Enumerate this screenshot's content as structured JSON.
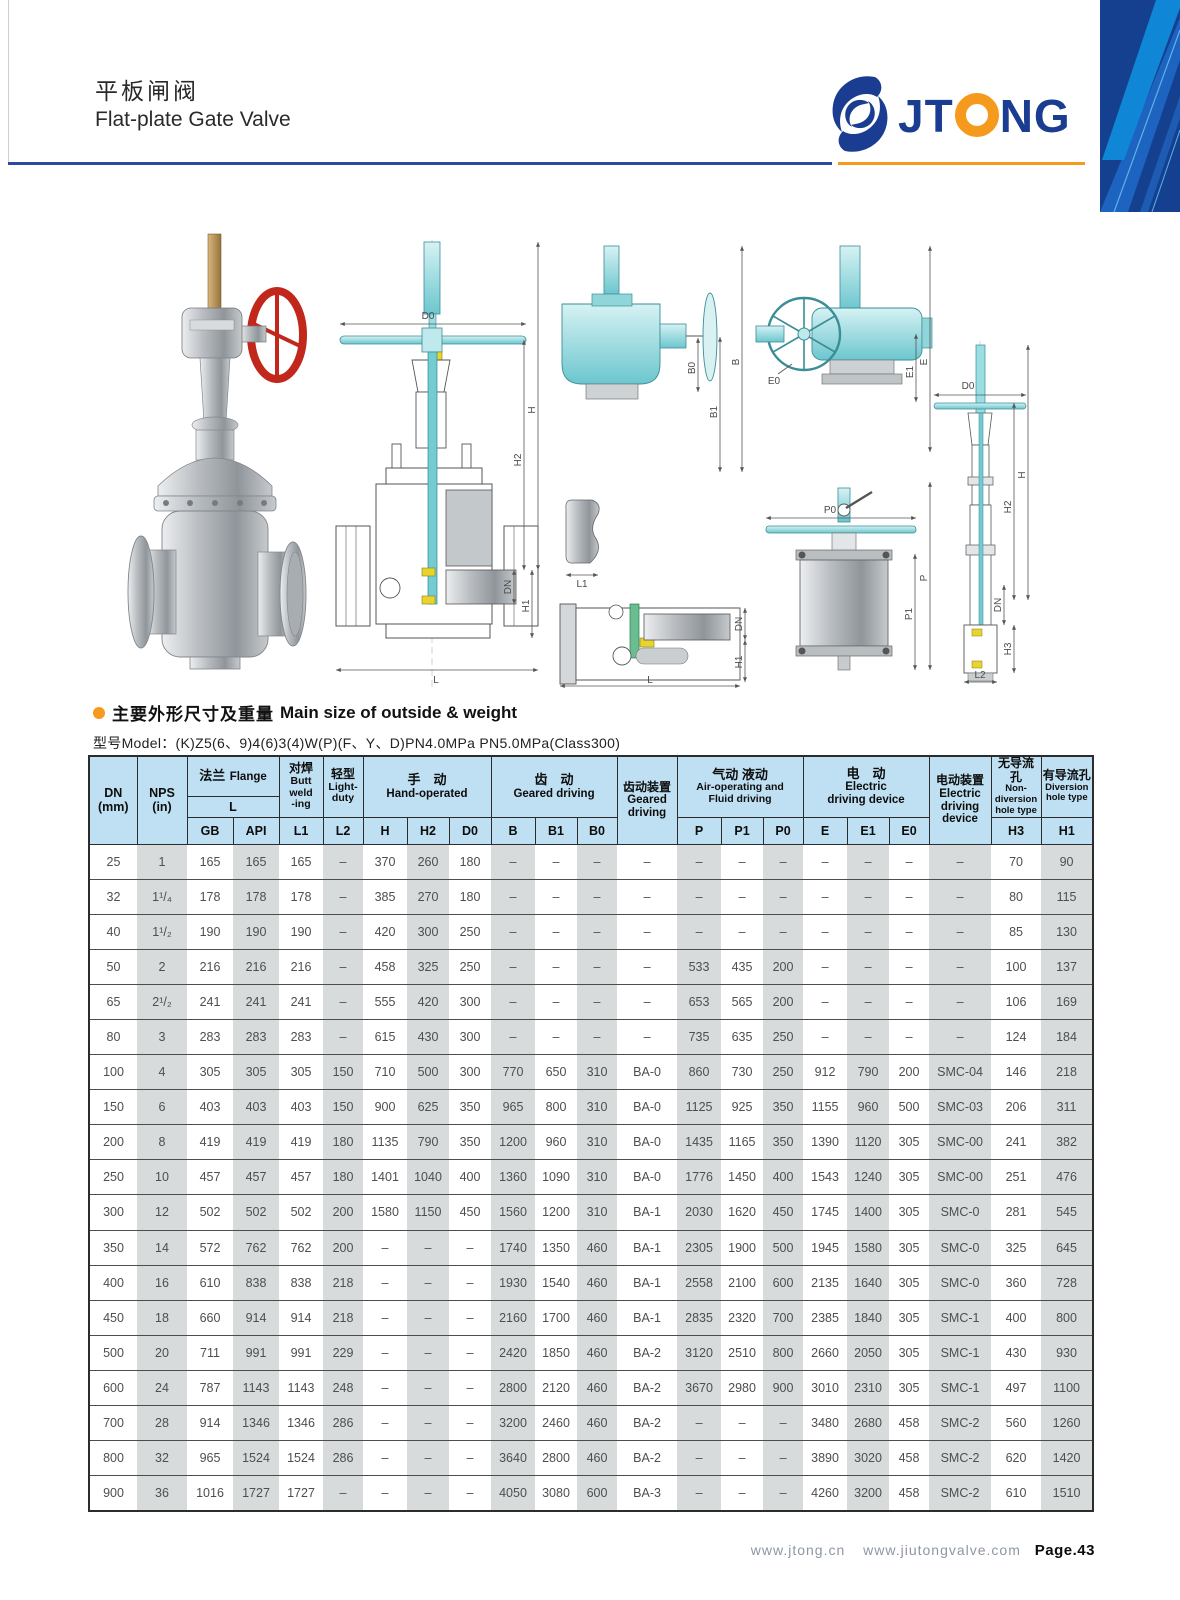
{
  "header": {
    "title_zh": "平板闸阀",
    "title_en": "Flat-plate Gate Valve",
    "logo": {
      "part1": "JT",
      "part2": "NG",
      "brand": "JTONG"
    }
  },
  "colors": {
    "accent_orange": "#F59A1D",
    "brand_navy": "#1B3D91",
    "rule_blue": "#2B4A9E",
    "table_header_bg": "#BFE0F2",
    "stripe_gray": "#D7DBDC",
    "drawing_teal": "#5FC4CC",
    "handwheel_red": "#C1271B"
  },
  "section": {
    "title_zh": "主要外形尺寸及重量",
    "title_en": "Main size of outside & weight",
    "model_label": "型号Model：",
    "model_value": "(K)Z5(6、9)4(6)3(4)W(P)(F、Y、D)PN4.0MPa PN5.0MPa(Class300)"
  },
  "drawings": {
    "fig2": {
      "dims": [
        "D0",
        "H",
        "H2",
        "DN",
        "H1",
        "L"
      ]
    },
    "fig3": {
      "dims": [
        "B0",
        "B1",
        "B",
        "L1",
        "DN",
        "H1",
        "L"
      ]
    },
    "fig4": {
      "dims": [
        "E0",
        "E",
        "E1",
        "P0",
        "P",
        "P1"
      ]
    },
    "fig5": {
      "dims": [
        "D0",
        "H",
        "H2",
        "DN",
        "H3",
        "L2"
      ]
    }
  },
  "table": {
    "header": {
      "dn": "DN\n(mm)",
      "nps": "NPS\n(in)",
      "flange": {
        "zh": "法兰",
        "en": "Flange",
        "sub": "L",
        "cols": [
          "GB",
          "API"
        ]
      },
      "butt": {
        "zh": "对焊",
        "en": "Butt\nweld\n-ing",
        "col": "L1"
      },
      "light": {
        "zh": "轻型",
        "en": "Light-\nduty",
        "col": "L2"
      },
      "hand": {
        "zh": "手　动",
        "en": "Hand-operated",
        "cols": [
          "H",
          "H2",
          "D0"
        ]
      },
      "geared": {
        "zh": "齿　动",
        "en": "Geared driving",
        "cols": [
          "B",
          "B1",
          "B0"
        ]
      },
      "geared_device": {
        "zh": "齿动装置",
        "en": "Geared\ndriving"
      },
      "air": {
        "zh": "气动 液动",
        "en": "Air-operating and\nFluid driving",
        "cols": [
          "P",
          "P1",
          "P0"
        ]
      },
      "electric": {
        "zh": "电　动",
        "en": "Electric\ndriving device",
        "cols": [
          "E",
          "E1",
          "E0"
        ]
      },
      "electric_device": {
        "zh": "电动装置",
        "en": "Electric\ndriving\ndevice"
      },
      "nondiversion": {
        "zh": "无导流孔",
        "en": "Non-diversion\nhole type",
        "col": "H3"
      },
      "diversion": {
        "zh": "有导流孔",
        "en": "Diversion\nhole type",
        "col": "H1"
      }
    },
    "rows": [
      [
        "25",
        "1",
        "165",
        "165",
        "165",
        "–",
        "370",
        "260",
        "180",
        "–",
        "–",
        "–",
        "–",
        "–",
        "–",
        "–",
        "–",
        "–",
        "–",
        "–",
        "70",
        "90"
      ],
      [
        "32",
        "1¹/₄",
        "178",
        "178",
        "178",
        "–",
        "385",
        "270",
        "180",
        "–",
        "–",
        "–",
        "–",
        "–",
        "–",
        "–",
        "–",
        "–",
        "–",
        "–",
        "80",
        "115"
      ],
      [
        "40",
        "1¹/₂",
        "190",
        "190",
        "190",
        "–",
        "420",
        "300",
        "250",
        "–",
        "–",
        "–",
        "–",
        "–",
        "–",
        "–",
        "–",
        "–",
        "–",
        "–",
        "85",
        "130"
      ],
      [
        "50",
        "2",
        "216",
        "216",
        "216",
        "–",
        "458",
        "325",
        "250",
        "–",
        "–",
        "–",
        "–",
        "533",
        "435",
        "200",
        "–",
        "–",
        "–",
        "–",
        "100",
        "137"
      ],
      [
        "65",
        "2¹/₂",
        "241",
        "241",
        "241",
        "–",
        "555",
        "420",
        "300",
        "–",
        "–",
        "–",
        "–",
        "653",
        "565",
        "200",
        "–",
        "–",
        "–",
        "–",
        "106",
        "169"
      ],
      [
        "80",
        "3",
        "283",
        "283",
        "283",
        "–",
        "615",
        "430",
        "300",
        "–",
        "–",
        "–",
        "–",
        "735",
        "635",
        "250",
        "–",
        "–",
        "–",
        "–",
        "124",
        "184"
      ],
      [
        "100",
        "4",
        "305",
        "305",
        "305",
        "150",
        "710",
        "500",
        "300",
        "770",
        "650",
        "310",
        "BA-0",
        "860",
        "730",
        "250",
        "912",
        "790",
        "200",
        "SMC-04",
        "146",
        "218"
      ],
      [
        "150",
        "6",
        "403",
        "403",
        "403",
        "150",
        "900",
        "625",
        "350",
        "965",
        "800",
        "310",
        "BA-0",
        "1125",
        "925",
        "350",
        "1155",
        "960",
        "500",
        "SMC-03",
        "206",
        "311"
      ],
      [
        "200",
        "8",
        "419",
        "419",
        "419",
        "180",
        "1135",
        "790",
        "350",
        "1200",
        "960",
        "310",
        "BA-0",
        "1435",
        "1165",
        "350",
        "1390",
        "1120",
        "305",
        "SMC-00",
        "241",
        "382"
      ],
      [
        "250",
        "10",
        "457",
        "457",
        "457",
        "180",
        "1401",
        "1040",
        "400",
        "1360",
        "1090",
        "310",
        "BA-0",
        "1776",
        "1450",
        "400",
        "1543",
        "1240",
        "305",
        "SMC-00",
        "251",
        "476"
      ],
      [
        "300",
        "12",
        "502",
        "502",
        "502",
        "200",
        "1580",
        "1150",
        "450",
        "1560",
        "1200",
        "310",
        "BA-1",
        "2030",
        "1620",
        "450",
        "1745",
        "1400",
        "305",
        "SMC-0",
        "281",
        "545"
      ],
      [
        "350",
        "14",
        "572",
        "762",
        "762",
        "200",
        "–",
        "–",
        "–",
        "1740",
        "1350",
        "460",
        "BA-1",
        "2305",
        "1900",
        "500",
        "1945",
        "1580",
        "305",
        "SMC-0",
        "325",
        "645"
      ],
      [
        "400",
        "16",
        "610",
        "838",
        "838",
        "218",
        "–",
        "–",
        "–",
        "1930",
        "1540",
        "460",
        "BA-1",
        "2558",
        "2100",
        "600",
        "2135",
        "1640",
        "305",
        "SMC-0",
        "360",
        "728"
      ],
      [
        "450",
        "18",
        "660",
        "914",
        "914",
        "218",
        "–",
        "–",
        "–",
        "2160",
        "1700",
        "460",
        "BA-1",
        "2835",
        "2320",
        "700",
        "2385",
        "1840",
        "305",
        "SMC-1",
        "400",
        "800"
      ],
      [
        "500",
        "20",
        "711",
        "991",
        "991",
        "229",
        "–",
        "–",
        "–",
        "2420",
        "1850",
        "460",
        "BA-2",
        "3120",
        "2510",
        "800",
        "2660",
        "2050",
        "305",
        "SMC-1",
        "430",
        "930"
      ],
      [
        "600",
        "24",
        "787",
        "1143",
        "1143",
        "248",
        "–",
        "–",
        "–",
        "2800",
        "2120",
        "460",
        "BA-2",
        "3670",
        "2980",
        "900",
        "3010",
        "2310",
        "305",
        "SMC-1",
        "497",
        "1100"
      ],
      [
        "700",
        "28",
        "914",
        "1346",
        "1346",
        "286",
        "–",
        "–",
        "–",
        "3200",
        "2460",
        "460",
        "BA-2",
        "–",
        "–",
        "–",
        "3480",
        "2680",
        "458",
        "SMC-2",
        "560",
        "1260"
      ],
      [
        "800",
        "32",
        "965",
        "1524",
        "1524",
        "286",
        "–",
        "–",
        "–",
        "3640",
        "2800",
        "460",
        "BA-2",
        "–",
        "–",
        "–",
        "3890",
        "3020",
        "458",
        "SMC-2",
        "620",
        "1420"
      ],
      [
        "900",
        "36",
        "1016",
        "1727",
        "1727",
        "–",
        "–",
        "–",
        "–",
        "4050",
        "3080",
        "600",
        "BA-3",
        "–",
        "–",
        "–",
        "4260",
        "3200",
        "458",
        "SMC-2",
        "610",
        "1510"
      ]
    ]
  },
  "footer": {
    "url1": "www.jtong.cn",
    "url2": "www.jiutongvalve.com",
    "page_label": "Page.43"
  }
}
